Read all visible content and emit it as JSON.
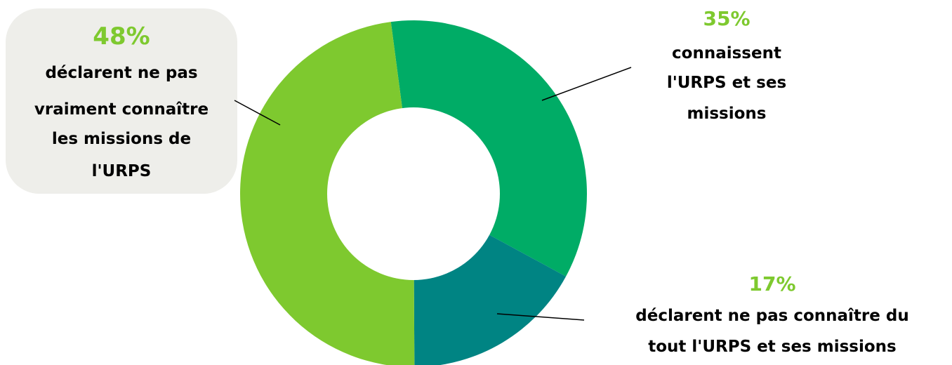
{
  "chart_data": {
    "type": "pie",
    "variant": "donut",
    "title": "",
    "slices": [
      {
        "label": "connaissent l'URPS et ses missions",
        "percent_label": "35%",
        "value": 35,
        "color": "#00ac66"
      },
      {
        "label": "déclarent ne pas connaître du tout l'URPS et ses missions",
        "percent_label": "17%",
        "value": 17,
        "color": "#008483"
      },
      {
        "label": "déclarent ne pas vraiment connaître les missions de l'URPS",
        "percent_label": "48%",
        "value": 48,
        "color": "#7ec92f"
      }
    ]
  },
  "callouts": {
    "left": {
      "pct": "48%",
      "lines": [
        "déclarent ne pas",
        "vraiment connaître",
        "les missions de",
        "l'URPS"
      ]
    },
    "right_top": {
      "pct": "35%",
      "lines": [
        "connaissent",
        "l'URPS et ses",
        "missions"
      ]
    },
    "right_bottom": {
      "pct": "17%",
      "lines": [
        "déclarent ne pas connaître du",
        "tout l'URPS et ses missions"
      ]
    }
  },
  "colors": {
    "percent_text": "#7ec92f",
    "bubble_bg": "#eeeeea",
    "hole": "#ffffff"
  }
}
